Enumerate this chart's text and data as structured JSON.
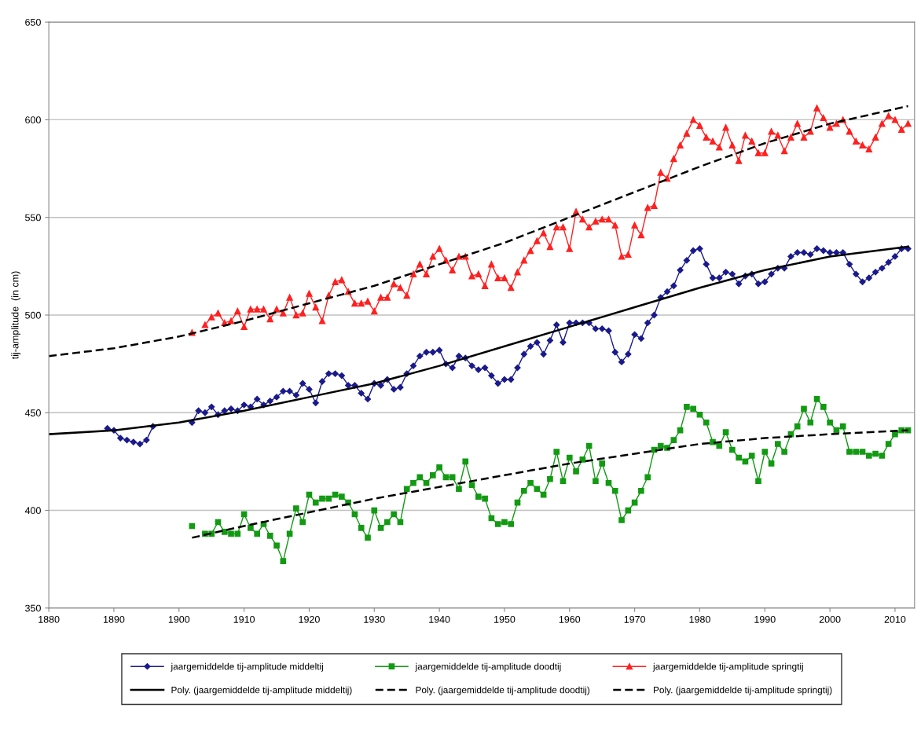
{
  "chart_data": {
    "type": "line",
    "ylabel": "tij-amplitude  (in cm)",
    "x": [
      1889,
      1890,
      1891,
      1892,
      1893,
      1894,
      1895,
      1896,
      1897,
      1898,
      1899,
      1900,
      1901,
      1902,
      1903,
      1904,
      1905,
      1906,
      1907,
      1908,
      1909,
      1910,
      1911,
      1912,
      1913,
      1914,
      1915,
      1916,
      1917,
      1918,
      1919,
      1920,
      1921,
      1922,
      1923,
      1924,
      1925,
      1926,
      1927,
      1928,
      1929,
      1930,
      1931,
      1932,
      1933,
      1934,
      1935,
      1936,
      1937,
      1938,
      1939,
      1940,
      1941,
      1942,
      1943,
      1944,
      1945,
      1946,
      1947,
      1948,
      1949,
      1950,
      1951,
      1952,
      1953,
      1954,
      1955,
      1956,
      1957,
      1958,
      1959,
      1960,
      1961,
      1962,
      1963,
      1964,
      1965,
      1966,
      1967,
      1968,
      1969,
      1970,
      1971,
      1972,
      1973,
      1974,
      1975,
      1976,
      1977,
      1978,
      1979,
      1980,
      1981,
      1982,
      1983,
      1984,
      1985,
      1986,
      1987,
      1988,
      1989,
      1990,
      1991,
      1992,
      1993,
      1994,
      1995,
      1996,
      1997,
      1998,
      1999,
      2000,
      2001,
      2002,
      2003,
      2004,
      2005,
      2006,
      2007,
      2008,
      2009,
      2010,
      2011,
      2012
    ],
    "xlim": [
      1880,
      2013
    ],
    "xticks": [
      1880,
      1890,
      1900,
      1910,
      1920,
      1930,
      1940,
      1950,
      1960,
      1970,
      1980,
      1990,
      2000,
      2010
    ],
    "ylim": [
      350,
      650
    ],
    "yticks": [
      350,
      400,
      450,
      500,
      550,
      600,
      650
    ],
    "grid": "y",
    "legend": "bottom",
    "series": [
      {
        "name": "jaargemiddelde tij-amplitude middeltij",
        "color": "#1a1a8c",
        "marker": "diamond",
        "line_style": "solid",
        "values": [
          442,
          441,
          437,
          436,
          435,
          434,
          436,
          443,
          null,
          null,
          null,
          null,
          null,
          445,
          451,
          450,
          453,
          449,
          451,
          452,
          451,
          454,
          453,
          457,
          454,
          456,
          458,
          461,
          461,
          459,
          465,
          462,
          455,
          466,
          470,
          470,
          469,
          464,
          464,
          460,
          457,
          465,
          464,
          467,
          462,
          463,
          470,
          474,
          479,
          481,
          481,
          482,
          475,
          473,
          479,
          478,
          474,
          472,
          473,
          469,
          465,
          467,
          467,
          473,
          480,
          484,
          486,
          480,
          487,
          495,
          486,
          496,
          496,
          496,
          496,
          493,
          493,
          492,
          481,
          476,
          480,
          490,
          488,
          496,
          500,
          509,
          512,
          515,
          523,
          528,
          533,
          534,
          526,
          519,
          519,
          522,
          521,
          516,
          520,
          521,
          516,
          517,
          521,
          524,
          524,
          530,
          532,
          532,
          531,
          534,
          533,
          532,
          532,
          532,
          526,
          521,
          517,
          519,
          522,
          524,
          527,
          530,
          534,
          534
        ]
      },
      {
        "name": "Poly. (jaargemiddelde tij-amplitude middeltij)",
        "type": "line",
        "color": "#000000",
        "marker": "none",
        "line_style": "solid",
        "x": [
          1880,
          1890,
          1900,
          1910,
          1920,
          1930,
          1940,
          1950,
          1960,
          1970,
          1980,
          1990,
          2000,
          2012
        ],
        "values": [
          439,
          441,
          445,
          451,
          458,
          465,
          474,
          484,
          494,
          504,
          514,
          523,
          530,
          535
        ]
      },
      {
        "name": "jaargemiddelde tij-amplitude doodtij",
        "color": "#139a13",
        "marker": "square",
        "line_style": "solid",
        "values": [
          null,
          null,
          null,
          null,
          null,
          null,
          null,
          null,
          null,
          null,
          null,
          null,
          null,
          392,
          null,
          388,
          388,
          394,
          389,
          388,
          388,
          398,
          391,
          388,
          393,
          387,
          382,
          374,
          388,
          401,
          394,
          408,
          404,
          406,
          406,
          408,
          407,
          404,
          398,
          391,
          386,
          400,
          391,
          394,
          398,
          394,
          411,
          414,
          417,
          414,
          418,
          422,
          417,
          417,
          411,
          425,
          413,
          407,
          406,
          396,
          393,
          394,
          393,
          404,
          410,
          414,
          411,
          408,
          416,
          430,
          415,
          427,
          420,
          426,
          433,
          415,
          424,
          414,
          410,
          395,
          400,
          404,
          410,
          417,
          431,
          433,
          432,
          436,
          441,
          453,
          452,
          449,
          445,
          435,
          433,
          440,
          431,
          427,
          425,
          428,
          415,
          430,
          424,
          434,
          430,
          439,
          443,
          452,
          445,
          457,
          453,
          445,
          441,
          443,
          430,
          430,
          430,
          428,
          429,
          428,
          434,
          439,
          441,
          441
        ]
      },
      {
        "name": "Poly. (jaargemiddelde tij-amplitude doodtij)",
        "type": "line",
        "color": "#000000",
        "marker": "none",
        "line_style": "dashed",
        "x": [
          1902,
          1910,
          1920,
          1930,
          1940,
          1950,
          1960,
          1970,
          1980,
          1990,
          2000,
          2012
        ],
        "values": [
          386,
          392,
          399,
          406,
          412,
          418,
          424,
          429,
          434,
          437,
          439,
          441
        ]
      },
      {
        "name": "jaargemiddelde tij-amplitude springtij",
        "color": "#ff2020",
        "marker": "triangle",
        "line_style": "solid",
        "values": [
          null,
          null,
          null,
          null,
          null,
          null,
          null,
          null,
          null,
          null,
          null,
          null,
          null,
          491,
          null,
          495,
          499,
          501,
          496,
          497,
          502,
          494,
          503,
          503,
          503,
          498,
          503,
          501,
          509,
          500,
          501,
          511,
          504,
          497,
          510,
          517,
          518,
          512,
          506,
          506,
          507,
          502,
          509,
          509,
          516,
          514,
          510,
          521,
          526,
          521,
          530,
          534,
          528,
          523,
          530,
          530,
          520,
          521,
          515,
          526,
          519,
          519,
          514,
          522,
          528,
          533,
          538,
          542,
          535,
          545,
          545,
          534,
          553,
          549,
          545,
          548,
          549,
          549,
          546,
          530,
          531,
          546,
          541,
          555,
          556,
          573,
          570,
          580,
          587,
          593,
          600,
          597,
          591,
          589,
          586,
          596,
          587,
          579,
          592,
          589,
          583,
          583,
          594,
          592,
          584,
          591,
          598,
          591,
          594,
          606,
          601,
          596,
          598,
          600,
          594,
          589,
          587,
          585,
          591,
          598,
          602,
          600,
          595,
          598
        ]
      },
      {
        "name": "Poly. (jaargemiddelde tij-amplitude springtij)",
        "type": "line",
        "color": "#000000",
        "marker": "none",
        "line_style": "dashed",
        "x": [
          1880,
          1890,
          1900,
          1910,
          1920,
          1930,
          1940,
          1950,
          1960,
          1970,
          1980,
          1990,
          2000,
          2012
        ],
        "values": [
          479,
          483,
          489,
          497,
          506,
          515,
          526,
          537,
          550,
          563,
          576,
          588,
          598,
          607
        ]
      }
    ]
  }
}
